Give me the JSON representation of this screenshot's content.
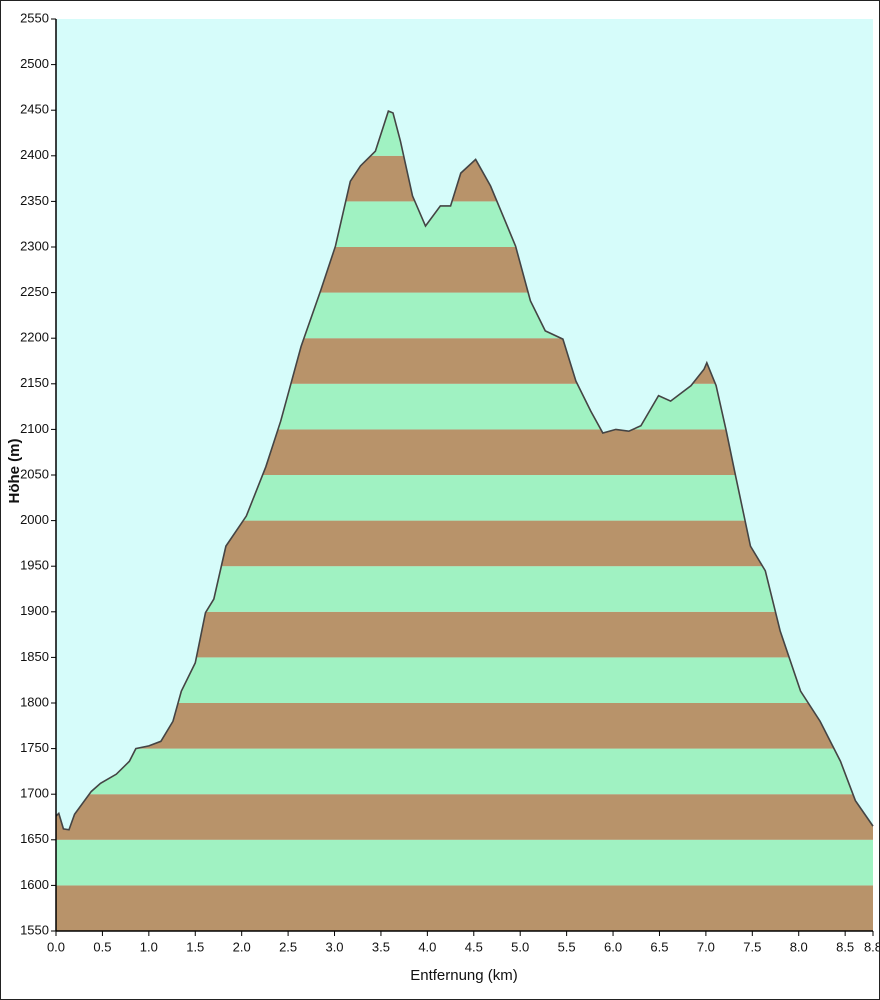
{
  "chart_data": {
    "type": "elevation",
    "x_label": "Entfernung  (km)",
    "y_label": "Höhe (m)",
    "xlim": [
      0,
      8.8
    ],
    "ylim": [
      1550,
      2550
    ],
    "xticks": [
      {
        "value": 0,
        "label": "0.0"
      },
      0.5,
      {
        "value": 1,
        "label": "1.0"
      },
      1.5,
      {
        "value": 2,
        "label": "2.0"
      },
      2.5,
      {
        "value": 3,
        "label": "3.0"
      },
      3.5,
      {
        "value": 4,
        "label": "4.0"
      },
      4.5,
      {
        "value": 5,
        "label": "5.0"
      },
      5.5,
      {
        "value": 6,
        "label": "6.0"
      },
      6.5,
      {
        "value": 7,
        "label": "7.0"
      },
      7.5,
      {
        "value": 8,
        "label": "8.0"
      },
      8.5,
      8.8
    ],
    "yticks": [
      1550,
      1600,
      1650,
      1700,
      1750,
      1800,
      1850,
      1900,
      1950,
      2000,
      2050,
      2100,
      2150,
      2200,
      2250,
      2300,
      2350,
      2400,
      2450,
      2500,
      2550
    ],
    "background": "#d6fcfa",
    "band_colors": [
      "#b8936a",
      "#a0f2c2"
    ],
    "line_color": "#444444",
    "x": [
      0,
      0.03,
      0.08,
      0.14,
      0.2,
      0.38,
      0.48,
      0.65,
      0.79,
      0.86,
      1.0,
      1.13,
      1.26,
      1.35,
      1.5,
      1.61,
      1.7,
      1.83,
      2.05,
      2.26,
      2.42,
      2.64,
      2.85,
      3.01,
      3.17,
      3.28,
      3.44,
      3.58,
      3.63,
      3.71,
      3.84,
      3.98,
      4.14,
      4.25,
      4.36,
      4.52,
      4.68,
      4.84,
      4.95,
      5.11,
      5.27,
      5.46,
      5.6,
      5.76,
      5.89,
      6.03,
      6.17,
      6.3,
      6.49,
      6.62,
      6.84,
      6.98,
      7.01,
      7.11,
      7.22,
      7.32,
      7.48,
      7.64,
      7.8,
      8.02,
      8.23,
      8.45,
      8.61,
      8.8
    ],
    "values": [
      1676,
      1679,
      1662,
      1661,
      1678,
      1703,
      1712,
      1722,
      1736,
      1750,
      1753,
      1758,
      1780,
      1813,
      1844,
      1899,
      1914,
      1972,
      2005,
      2059,
      2109,
      2191,
      2252,
      2301,
      2372,
      2389,
      2405,
      2449,
      2447,
      2416,
      2356,
      2323,
      2345,
      2345,
      2381,
      2396,
      2367,
      2328,
      2301,
      2241,
      2208,
      2199,
      2153,
      2120,
      2096,
      2100,
      2098,
      2104,
      2137,
      2131,
      2148,
      2166,
      2173,
      2148,
      2098,
      2049,
      1972,
      1945,
      1879,
      1813,
      1780,
      1736,
      1693,
      1665
    ]
  }
}
